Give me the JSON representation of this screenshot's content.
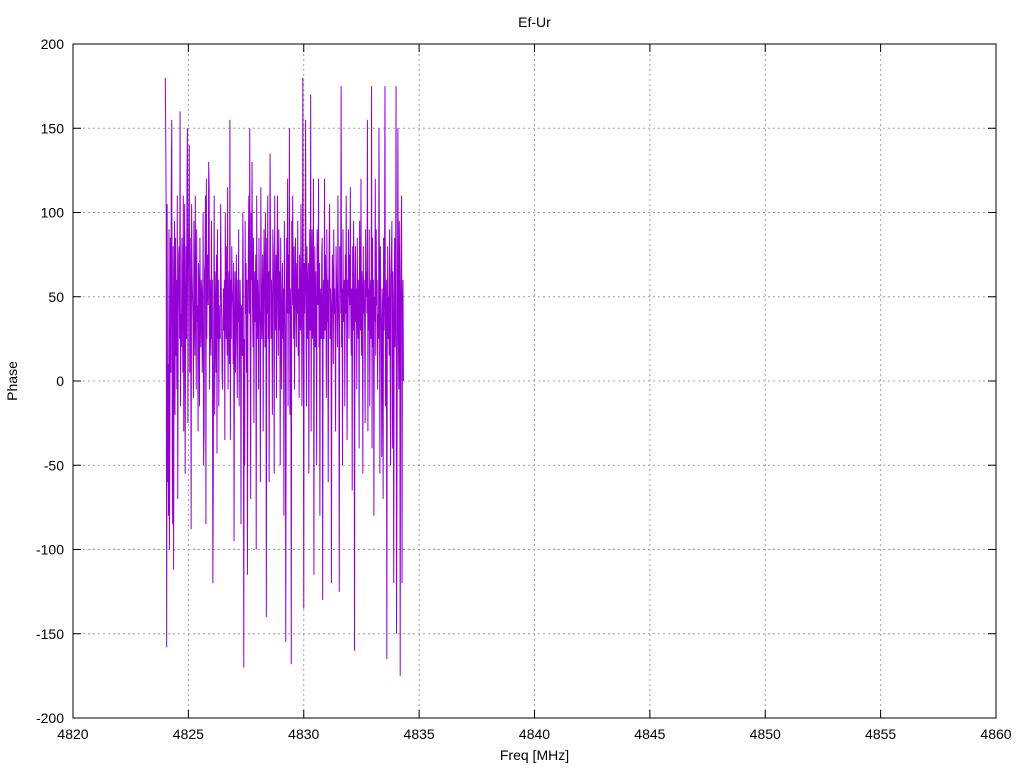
{
  "chart_data": {
    "type": "line",
    "title": "Ef-Ur",
    "xlabel": "Freq [MHz]",
    "ylabel": "Phase",
    "xlim": [
      4820,
      4860
    ],
    "ylim": [
      -200,
      200
    ],
    "xticks": [
      4820,
      4825,
      4830,
      4835,
      4840,
      4845,
      4850,
      4855,
      4860
    ],
    "yticks": [
      -200,
      -150,
      -100,
      -50,
      0,
      50,
      100,
      150,
      200
    ],
    "grid": true,
    "series_color": "#9400d3",
    "series": [
      {
        "x_start": 4824.0,
        "x_step": 0.02,
        "values": [
          180,
          145,
          95,
          -158,
          105,
          -60,
          10,
          -80,
          90,
          -100,
          -20,
          85,
          5,
          120,
          155,
          -40,
          -85,
          80,
          -112,
          35,
          95,
          -20,
          85,
          15,
          60,
          -5,
          110,
          -70,
          35,
          75,
          80,
          25,
          160,
          -15,
          40,
          20,
          85,
          50,
          5,
          110,
          -30,
          60,
          105,
          -55,
          35,
          80,
          25,
          120,
          150,
          -25,
          60,
          95,
          140,
          5,
          85,
          40,
          -88,
          105,
          65,
          50,
          35,
          -10,
          95,
          40,
          15,
          110,
          50,
          -5,
          90,
          35,
          45,
          -30,
          70,
          55,
          -15,
          85,
          40,
          20,
          60,
          55,
          5,
          35,
          100,
          -50,
          -30,
          65,
          70,
          110,
          -85,
          120,
          25,
          75,
          55,
          45,
          130,
          115,
          -5,
          60,
          40,
          15,
          95,
          25,
          60,
          -120,
          -60,
          40,
          110,
          -20,
          65,
          40,
          5,
          75,
          -43,
          90,
          25,
          60,
          -15,
          35,
          45,
          25,
          105,
          60,
          40,
          5,
          -5,
          35,
          55,
          30,
          60,
          -35,
          100,
          45,
          25,
          80,
          15,
          115,
          -5,
          40,
          65,
          10,
          155,
          -35,
          60,
          25,
          80,
          55,
          45,
          10,
          70,
          -95,
          30,
          65,
          5,
          45,
          75,
          25,
          -10,
          60,
          35,
          90,
          -15,
          20,
          60,
          40,
          -85,
          45,
          30,
          15,
          100,
          60,
          -170,
          25,
          -50,
          95,
          40,
          70,
          5,
          60,
          -115,
          35,
          80,
          110,
          40,
          150,
          15,
          -70,
          100,
          60,
          130,
          45,
          20,
          85,
          -25,
          65,
          35,
          50,
          75,
          -100,
          110,
          25,
          60,
          40,
          -5,
          85,
          45,
          30,
          -60,
          115,
          60,
          25,
          50,
          75,
          -30,
          45,
          90,
          60,
          20,
          100,
          45,
          -140,
          85,
          40,
          110,
          25,
          65,
          -60,
          45,
          135,
          80,
          25,
          60,
          40,
          -20,
          90,
          75,
          50,
          -55,
          110,
          35,
          30,
          75,
          -10,
          60,
          110,
          50,
          15,
          90,
          30,
          65,
          -50,
          85,
          45,
          -5,
          45,
          70,
          25,
          55,
          -80,
          95,
          60,
          30,
          -155,
          15,
          85,
          40,
          120,
          -15,
          75,
          40,
          150,
          -20,
          55,
          30,
          -168,
          95,
          45,
          110,
          60,
          25,
          80,
          -5,
          45,
          85,
          50,
          20,
          70,
          40,
          95,
          15,
          55,
          -10,
          75,
          40,
          30,
          105,
          60,
          -15,
          45,
          180,
          50,
          -135,
          70,
          40,
          60,
          155,
          35,
          -15,
          80,
          25,
          55,
          70,
          -55,
          45,
          90,
          30,
          170,
          -30,
          60,
          90,
          25,
          40,
          120,
          -115,
          50,
          80,
          20,
          65,
          35,
          -50,
          90,
          60,
          45,
          120,
          20,
          70,
          -80,
          55,
          40,
          25,
          75,
          85,
          -130,
          45,
          60,
          25,
          120,
          30,
          75,
          50,
          -10,
          90,
          35,
          60,
          -60,
          40,
          80,
          105,
          25,
          55,
          45,
          -120,
          35,
          75,
          60,
          10,
          90,
          40,
          55,
          25,
          -30,
          80,
          60,
          45,
          20,
          110,
          50,
          30,
          -125,
          80,
          40,
          65,
          175,
          20,
          55,
          -50,
          90,
          35,
          45,
          60,
          -15,
          75,
          40,
          110,
          30,
          -35,
          60,
          50,
          90,
          25,
          75,
          45,
          115,
          40,
          15,
          55,
          -65,
          80,
          30,
          95,
          60,
          -160,
          45,
          80,
          35,
          55,
          -5,
          85,
          40,
          25,
          60,
          -40,
          95,
          45,
          30,
          120,
          15,
          65,
          50,
          -55,
          80,
          40,
          60,
          30,
          -25,
          90,
          50,
          65,
          40,
          155,
          -30,
          55,
          30,
          90,
          -15,
          45,
          60,
          25,
          175,
          -40,
          85,
          20,
          60,
          -80,
          50,
          35,
          120,
          15,
          90,
          45,
          60,
          -5,
          40,
          25,
          150,
          60,
          -55,
          80,
          45,
          30,
          -45,
          55,
          40,
          -70,
          85,
          30,
          60,
          175,
          -15,
          45,
          60,
          -165,
          35,
          80,
          25,
          50,
          15,
          90,
          35,
          -50,
          60,
          75,
          95,
          -40,
          65,
          30,
          -120,
          55,
          85,
          20,
          60,
          175,
          -150,
          -55,
          45,
          150,
          30,
          -5,
          95,
          60,
          -175,
          40,
          85,
          110,
          -120,
          45,
          60,
          0
        ]
      }
    ]
  }
}
